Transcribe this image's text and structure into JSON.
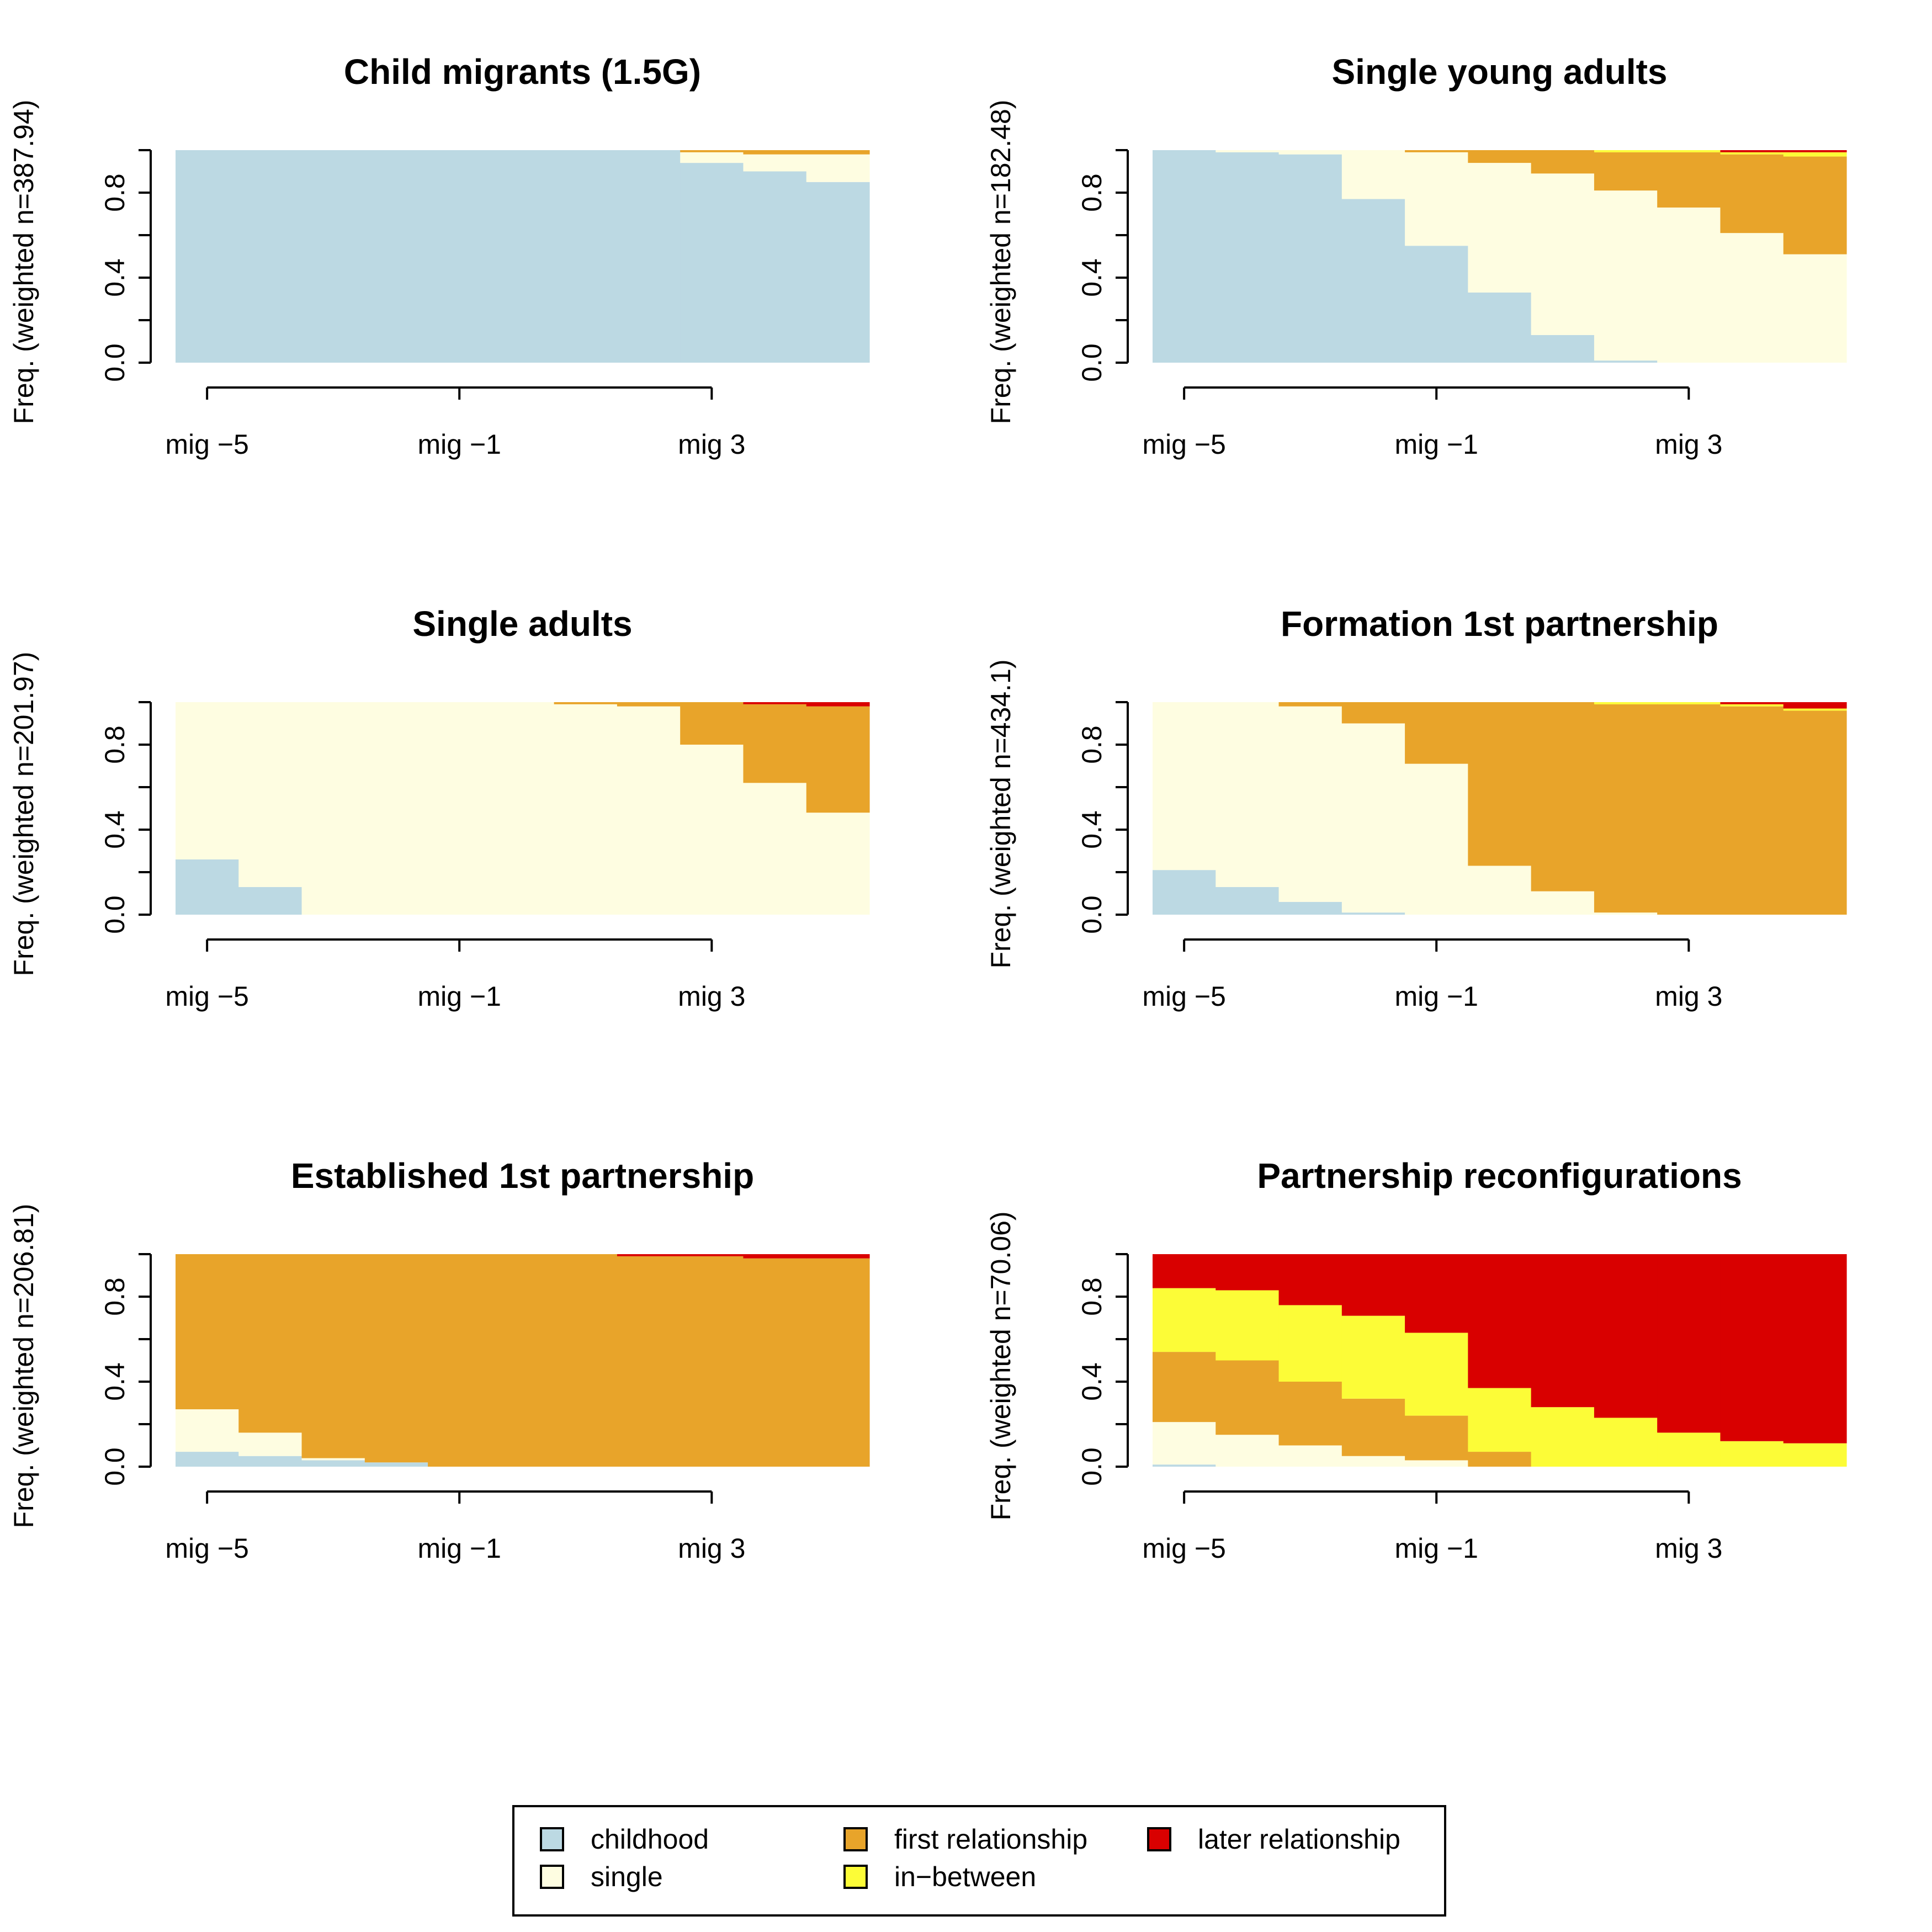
{
  "legend": {
    "position": "bottom-center",
    "items": [
      {
        "key": "childhood",
        "label": "childhood"
      },
      {
        "key": "single",
        "label": "single"
      },
      {
        "key": "first",
        "label": "first relationship"
      },
      {
        "key": "inbetween",
        "label": "in−between"
      },
      {
        "key": "later",
        "label": "later relationship"
      }
    ]
  },
  "colors": {
    "childhood": "#BCD9E3",
    "single": "#FEFDE1",
    "first": "#E8A42A",
    "inbetween": "#FCFC37",
    "later": "#D90000"
  },
  "chart_data": [
    {
      "type": "bar",
      "stacked": true,
      "title": "Child migrants (1.5G)",
      "ylabel": "Freq. (weighted n=387.94)",
      "x_ticks": [
        "mig −5",
        "mig −1",
        "mig 3"
      ],
      "y_ticks": [
        "0.0",
        "0.4",
        "0.8"
      ],
      "ylim": [
        0,
        1
      ],
      "categories": [
        "mig -5",
        "mig -4",
        "mig -3",
        "mig -2",
        "mig -1",
        "mig 0",
        "mig 1",
        "mig 2",
        "mig 3",
        "mig 4",
        "mig 5"
      ],
      "series": [
        {
          "name": "childhood",
          "values": [
            1.0,
            1.0,
            1.0,
            1.0,
            1.0,
            1.0,
            1.0,
            1.0,
            0.94,
            0.9,
            0.85
          ]
        },
        {
          "name": "single",
          "values": [
            0,
            0,
            0,
            0,
            0,
            0,
            0,
            0,
            0.05,
            0.08,
            0.13
          ]
        },
        {
          "name": "first relationship",
          "values": [
            0,
            0,
            0,
            0,
            0,
            0,
            0,
            0,
            0.01,
            0.02,
            0.02
          ]
        },
        {
          "name": "in−between",
          "values": [
            0,
            0,
            0,
            0,
            0,
            0,
            0,
            0,
            0,
            0,
            0
          ]
        },
        {
          "name": "later relationship",
          "values": [
            0,
            0,
            0,
            0,
            0,
            0,
            0,
            0,
            0,
            0,
            0
          ]
        }
      ]
    },
    {
      "type": "bar",
      "stacked": true,
      "title": "Single young adults",
      "ylabel": "Freq. (weighted n=182.48)",
      "x_ticks": [
        "mig −5",
        "mig −1",
        "mig 3"
      ],
      "y_ticks": [
        "0.0",
        "0.4",
        "0.8"
      ],
      "ylim": [
        0,
        1
      ],
      "categories": [
        "mig -5",
        "mig -4",
        "mig -3",
        "mig -2",
        "mig -1",
        "mig 0",
        "mig 1",
        "mig 2",
        "mig 3",
        "mig 4",
        "mig 5"
      ],
      "series": [
        {
          "name": "childhood",
          "values": [
            1.0,
            0.99,
            0.98,
            0.77,
            0.55,
            0.33,
            0.13,
            0.01,
            0,
            0,
            0
          ]
        },
        {
          "name": "single",
          "values": [
            0,
            0.01,
            0.02,
            0.23,
            0.44,
            0.61,
            0.76,
            0.8,
            0.73,
            0.61,
            0.51
          ]
        },
        {
          "name": "first relationship",
          "values": [
            0,
            0,
            0,
            0,
            0.01,
            0.06,
            0.11,
            0.18,
            0.26,
            0.37,
            0.46
          ]
        },
        {
          "name": "in−between",
          "values": [
            0,
            0,
            0,
            0,
            0,
            0,
            0,
            0.01,
            0.01,
            0.01,
            0.02
          ]
        },
        {
          "name": "later relationship",
          "values": [
            0,
            0,
            0,
            0,
            0,
            0,
            0,
            0,
            0,
            0.01,
            0.01
          ]
        }
      ]
    },
    {
      "type": "bar",
      "stacked": true,
      "title": "Single adults",
      "ylabel": "Freq. (weighted n=201.97)",
      "x_ticks": [
        "mig −5",
        "mig −1",
        "mig 3"
      ],
      "y_ticks": [
        "0.0",
        "0.4",
        "0.8"
      ],
      "ylim": [
        0,
        1
      ],
      "categories": [
        "mig -5",
        "mig -4",
        "mig -3",
        "mig -2",
        "mig -1",
        "mig 0",
        "mig 1",
        "mig 2",
        "mig 3",
        "mig 4",
        "mig 5"
      ],
      "series": [
        {
          "name": "childhood",
          "values": [
            0.26,
            0.13,
            0,
            0,
            0,
            0,
            0,
            0,
            0,
            0,
            0
          ]
        },
        {
          "name": "single",
          "values": [
            0.74,
            0.87,
            1.0,
            1.0,
            1.0,
            1.0,
            0.99,
            0.98,
            0.8,
            0.62,
            0.48
          ]
        },
        {
          "name": "first relationship",
          "values": [
            0,
            0,
            0,
            0,
            0,
            0,
            0.01,
            0.02,
            0.2,
            0.37,
            0.5
          ]
        },
        {
          "name": "in−between",
          "values": [
            0,
            0,
            0,
            0,
            0,
            0,
            0,
            0,
            0,
            0,
            0
          ]
        },
        {
          "name": "later relationship",
          "values": [
            0,
            0,
            0,
            0,
            0,
            0,
            0,
            0,
            0,
            0.01,
            0.02
          ]
        }
      ]
    },
    {
      "type": "bar",
      "stacked": true,
      "title": "Formation 1st partnership",
      "ylabel": "Freq. (weighted n=434.1)",
      "x_ticks": [
        "mig −5",
        "mig −1",
        "mig 3"
      ],
      "y_ticks": [
        "0.0",
        "0.4",
        "0.8"
      ],
      "ylim": [
        0,
        1
      ],
      "categories": [
        "mig -5",
        "mig -4",
        "mig -3",
        "mig -2",
        "mig -1",
        "mig 0",
        "mig 1",
        "mig 2",
        "mig 3",
        "mig 4",
        "mig 5"
      ],
      "series": [
        {
          "name": "childhood",
          "values": [
            0.21,
            0.13,
            0.06,
            0.01,
            0,
            0,
            0,
            0,
            0,
            0,
            0
          ]
        },
        {
          "name": "single",
          "values": [
            0.79,
            0.87,
            0.92,
            0.89,
            0.71,
            0.23,
            0.11,
            0.01,
            0,
            0,
            0
          ]
        },
        {
          "name": "first relationship",
          "values": [
            0,
            0,
            0.02,
            0.1,
            0.29,
            0.77,
            0.89,
            0.98,
            0.99,
            0.98,
            0.96
          ]
        },
        {
          "name": "in−between",
          "values": [
            0,
            0,
            0,
            0,
            0,
            0,
            0,
            0.01,
            0.01,
            0.01,
            0.01
          ]
        },
        {
          "name": "later relationship",
          "values": [
            0,
            0,
            0,
            0,
            0,
            0,
            0,
            0,
            0,
            0.01,
            0.03
          ]
        }
      ]
    },
    {
      "type": "bar",
      "stacked": true,
      "title": "Established 1st partnership",
      "ylabel": "Freq. (weighted n=206.81)",
      "x_ticks": [
        "mig −5",
        "mig −1",
        "mig 3"
      ],
      "y_ticks": [
        "0.0",
        "0.4",
        "0.8"
      ],
      "ylim": [
        0,
        1
      ],
      "categories": [
        "mig -5",
        "mig -4",
        "mig -3",
        "mig -2",
        "mig -1",
        "mig 0",
        "mig 1",
        "mig 2",
        "mig 3",
        "mig 4",
        "mig 5"
      ],
      "series": [
        {
          "name": "childhood",
          "values": [
            0.07,
            0.05,
            0.03,
            0.02,
            0,
            0,
            0,
            0,
            0,
            0,
            0
          ]
        },
        {
          "name": "single",
          "values": [
            0.2,
            0.11,
            0.01,
            0,
            0,
            0,
            0,
            0,
            0,
            0,
            0
          ]
        },
        {
          "name": "first relationship",
          "values": [
            0.73,
            0.84,
            0.96,
            0.98,
            1.0,
            1.0,
            1.0,
            0.99,
            0.99,
            0.98,
            0.98
          ]
        },
        {
          "name": "in−between",
          "values": [
            0,
            0,
            0,
            0,
            0,
            0,
            0,
            0,
            0,
            0,
            0
          ]
        },
        {
          "name": "later relationship",
          "values": [
            0,
            0,
            0,
            0,
            0,
            0,
            0,
            0.01,
            0.01,
            0.02,
            0.02
          ]
        }
      ]
    },
    {
      "type": "bar",
      "stacked": true,
      "title": "Partnership reconfigurations",
      "ylabel": "Freq. (weighted n=70.06)",
      "x_ticks": [
        "mig −5",
        "mig −1",
        "mig 3"
      ],
      "y_ticks": [
        "0.0",
        "0.4",
        "0.8"
      ],
      "ylim": [
        0,
        1
      ],
      "categories": [
        "mig -5",
        "mig -4",
        "mig -3",
        "mig -2",
        "mig -1",
        "mig 0",
        "mig 1",
        "mig 2",
        "mig 3",
        "mig 4",
        "mig 5"
      ],
      "series": [
        {
          "name": "childhood",
          "values": [
            0.01,
            0,
            0,
            0,
            0,
            0,
            0,
            0,
            0,
            0,
            0
          ]
        },
        {
          "name": "single",
          "values": [
            0.2,
            0.15,
            0.1,
            0.05,
            0.03,
            0,
            0,
            0,
            0,
            0,
            0
          ]
        },
        {
          "name": "first relationship",
          "values": [
            0.33,
            0.35,
            0.3,
            0.27,
            0.21,
            0.07,
            0,
            0,
            0,
            0,
            0
          ]
        },
        {
          "name": "in−between",
          "values": [
            0.3,
            0.33,
            0.36,
            0.39,
            0.39,
            0.3,
            0.28,
            0.23,
            0.16,
            0.12,
            0.11
          ]
        },
        {
          "name": "later relationship",
          "values": [
            0.16,
            0.17,
            0.24,
            0.29,
            0.37,
            0.63,
            0.72,
            0.77,
            0.84,
            0.88,
            0.89
          ]
        }
      ]
    }
  ]
}
